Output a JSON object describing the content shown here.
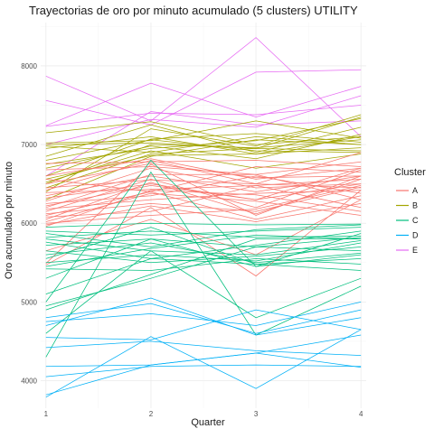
{
  "chart_data": {
    "type": "line",
    "title": "Trayectorias de oro por minuto acumulado (5 clusters) UTILITY",
    "xlabel": "Quarter",
    "ylabel": "Oro acumulado por minuto",
    "x": [
      1,
      2,
      3,
      4
    ],
    "xlim": [
      0.95,
      4.05
    ],
    "ylim": [
      3650,
      8550
    ],
    "x_ticks": [
      "1",
      "2",
      "3",
      "4"
    ],
    "y_ticks": [
      4000,
      5000,
      6000,
      7000,
      8000
    ],
    "grid": true,
    "legend": {
      "title": "Cluster",
      "position": "right",
      "entries": [
        {
          "name": "A",
          "color": "#F8766D"
        },
        {
          "name": "B",
          "color": "#A3A500"
        },
        {
          "name": "C",
          "color": "#00BF7D"
        },
        {
          "name": "D",
          "color": "#00B0F6"
        },
        {
          "name": "E",
          "color": "#E76BF3"
        }
      ]
    },
    "series": [
      {
        "cluster": "E",
        "values": [
          7870,
          7300,
          8360,
          7100
        ]
      },
      {
        "cluster": "E",
        "values": [
          7560,
          7250,
          7920,
          7950
        ]
      },
      {
        "cluster": "E",
        "values": [
          7240,
          7780,
          7350,
          7740
        ]
      },
      {
        "cluster": "E",
        "values": [
          7230,
          7400,
          7380,
          7500
        ]
      },
      {
        "cluster": "E",
        "values": [
          7000,
          7320,
          7220,
          7620
        ]
      },
      {
        "cluster": "E",
        "values": [
          6600,
          7420,
          7250,
          7300
        ]
      },
      {
        "cluster": "B",
        "values": [
          7150,
          7290,
          7000,
          7100
        ]
      },
      {
        "cluster": "B",
        "values": [
          7020,
          7050,
          7300,
          7080
        ]
      },
      {
        "cluster": "B",
        "values": [
          7000,
          7020,
          6950,
          7350
        ]
      },
      {
        "cluster": "B",
        "values": [
          6980,
          6900,
          7100,
          7000
        ]
      },
      {
        "cluster": "B",
        "values": [
          6950,
          7100,
          6880,
          6960
        ]
      },
      {
        "cluster": "B",
        "values": [
          6850,
          7250,
          6900,
          7220
        ]
      },
      {
        "cluster": "B",
        "values": [
          6800,
          7060,
          6920,
          6900
        ]
      },
      {
        "cluster": "B",
        "values": [
          6750,
          6950,
          7050,
          7330
        ]
      },
      {
        "cluster": "B",
        "values": [
          6700,
          6980,
          6820,
          7130
        ]
      },
      {
        "cluster": "B",
        "values": [
          6600,
          7070,
          7140,
          7030
        ]
      },
      {
        "cluster": "B",
        "values": [
          6560,
          6860,
          6880,
          7100
        ]
      },
      {
        "cluster": "B",
        "values": [
          6520,
          6920,
          6700,
          6880
        ]
      },
      {
        "cluster": "B",
        "values": [
          6500,
          7000,
          6960,
          7060
        ]
      },
      {
        "cluster": "B",
        "values": [
          6450,
          6880,
          6950,
          6920
        ]
      },
      {
        "cluster": "B",
        "values": [
          6400,
          7200,
          6980,
          7380
        ]
      },
      {
        "cluster": "B",
        "values": [
          6300,
          6850,
          7060,
          7000
        ]
      },
      {
        "cluster": "A",
        "values": [
          6760,
          6780,
          6800,
          6720
        ]
      },
      {
        "cluster": "A",
        "values": [
          6680,
          6720,
          6620,
          6780
        ]
      },
      {
        "cluster": "A",
        "values": [
          6600,
          6820,
          6560,
          6700
        ]
      },
      {
        "cluster": "A",
        "values": [
          6560,
          6400,
          6720,
          6650
        ]
      },
      {
        "cluster": "A",
        "values": [
          6500,
          6760,
          6580,
          6600
        ]
      },
      {
        "cluster": "A",
        "values": [
          6450,
          6550,
          6500,
          6900
        ]
      },
      {
        "cluster": "A",
        "values": [
          6420,
          6800,
          6500,
          6450
        ]
      },
      {
        "cluster": "A",
        "values": [
          6390,
          6430,
          6480,
          6560
        ]
      },
      {
        "cluster": "A",
        "values": [
          6350,
          6600,
          6400,
          6600
        ]
      },
      {
        "cluster": "A",
        "values": [
          6320,
          6500,
          6300,
          6700
        ]
      },
      {
        "cluster": "A",
        "values": [
          6280,
          6700,
          6450,
          6500
        ]
      },
      {
        "cluster": "A",
        "values": [
          6250,
          6350,
          6600,
          6380
        ]
      },
      {
        "cluster": "A",
        "values": [
          6220,
          6480,
          6300,
          6500
        ]
      },
      {
        "cluster": "A",
        "values": [
          6200,
          6620,
          6620,
          6300
        ]
      },
      {
        "cluster": "A",
        "values": [
          6180,
          6300,
          6380,
          6420
        ]
      },
      {
        "cluster": "A",
        "values": [
          6150,
          6560,
          6200,
          6680
        ]
      },
      {
        "cluster": "A",
        "values": [
          6120,
          6250,
          6150,
          6460
        ]
      },
      {
        "cluster": "A",
        "values": [
          6100,
          6400,
          6050,
          6350
        ]
      },
      {
        "cluster": "A",
        "values": [
          6080,
          6150,
          6480,
          6200
        ]
      },
      {
        "cluster": "A",
        "values": [
          6050,
          6520,
          6120,
          6560
        ]
      },
      {
        "cluster": "A",
        "values": [
          6020,
          6380,
          6280,
          6100
        ]
      },
      {
        "cluster": "A",
        "values": [
          6000,
          6100,
          6180,
          6480
        ]
      },
      {
        "cluster": "A",
        "values": [
          5980,
          6220,
          6020,
          6250
        ]
      },
      {
        "cluster": "A",
        "values": [
          5960,
          6420,
          6360,
          6150
        ]
      },
      {
        "cluster": "A",
        "values": [
          5490,
          6750,
          6100,
          6600
        ]
      },
      {
        "cluster": "A",
        "values": [
          5470,
          6200,
          5330,
          6420
        ]
      },
      {
        "cluster": "A",
        "values": [
          5650,
          6050,
          5600,
          6300
        ]
      },
      {
        "cluster": "C",
        "values": [
          5950,
          6000,
          5980,
          5990
        ]
      },
      {
        "cluster": "C",
        "values": [
          5900,
          5850,
          5900,
          5950
        ]
      },
      {
        "cluster": "C",
        "values": [
          5870,
          5700,
          5920,
          5980
        ]
      },
      {
        "cluster": "C",
        "values": [
          5820,
          5900,
          5820,
          5840
        ]
      },
      {
        "cluster": "C",
        "values": [
          5800,
          5650,
          5600,
          5780
        ]
      },
      {
        "cluster": "C",
        "values": [
          5760,
          5550,
          5720,
          5900
        ]
      },
      {
        "cluster": "C",
        "values": [
          5720,
          5800,
          5700,
          5650
        ]
      },
      {
        "cluster": "C",
        "values": [
          5650,
          5500,
          5580,
          5700
        ]
      },
      {
        "cluster": "C",
        "values": [
          5600,
          5750,
          5500,
          5620
        ]
      },
      {
        "cluster": "C",
        "values": [
          5550,
          5950,
          5480,
          5550
        ]
      },
      {
        "cluster": "C",
        "values": [
          5500,
          5600,
          5520,
          5750
        ]
      },
      {
        "cluster": "C",
        "values": [
          5450,
          5680,
          5850,
          5800
        ]
      },
      {
        "cluster": "C",
        "values": [
          5420,
          5400,
          5550,
          5480
        ]
      },
      {
        "cluster": "C",
        "values": [
          5300,
          5800,
          5450,
          5600
        ]
      },
      {
        "cluster": "C",
        "values": [
          5100,
          5550,
          5480,
          5400
        ]
      },
      {
        "cluster": "C",
        "values": [
          5000,
          6800,
          5450,
          5870
        ]
      },
      {
        "cluster": "C",
        "values": [
          4950,
          5300,
          5700,
          5820
        ]
      },
      {
        "cluster": "C",
        "values": [
          4900,
          5350,
          5800,
          5800
        ]
      },
      {
        "cluster": "C",
        "values": [
          4600,
          5650,
          4800,
          5300
        ]
      },
      {
        "cluster": "C",
        "values": [
          4300,
          6650,
          4580,
          5200
        ]
      },
      {
        "cluster": "D",
        "values": [
          4800,
          4980,
          4600,
          4900
        ]
      },
      {
        "cluster": "D",
        "values": [
          4750,
          4850,
          4700,
          5000
        ]
      },
      {
        "cluster": "D",
        "values": [
          4700,
          5050,
          4580,
          4800
        ]
      },
      {
        "cluster": "D",
        "values": [
          4550,
          4520,
          4900,
          4650
        ]
      },
      {
        "cluster": "D",
        "values": [
          4420,
          4500,
          4380,
          4320
        ]
      },
      {
        "cluster": "D",
        "values": [
          4180,
          4200,
          4350,
          4580
        ]
      },
      {
        "cluster": "D",
        "values": [
          4050,
          4180,
          4200,
          4180
        ]
      },
      {
        "cluster": "D",
        "values": [
          3820,
          4200,
          4350,
          4170
        ]
      },
      {
        "cluster": "D",
        "values": [
          3790,
          4560,
          3900,
          4650
        ]
      }
    ]
  }
}
